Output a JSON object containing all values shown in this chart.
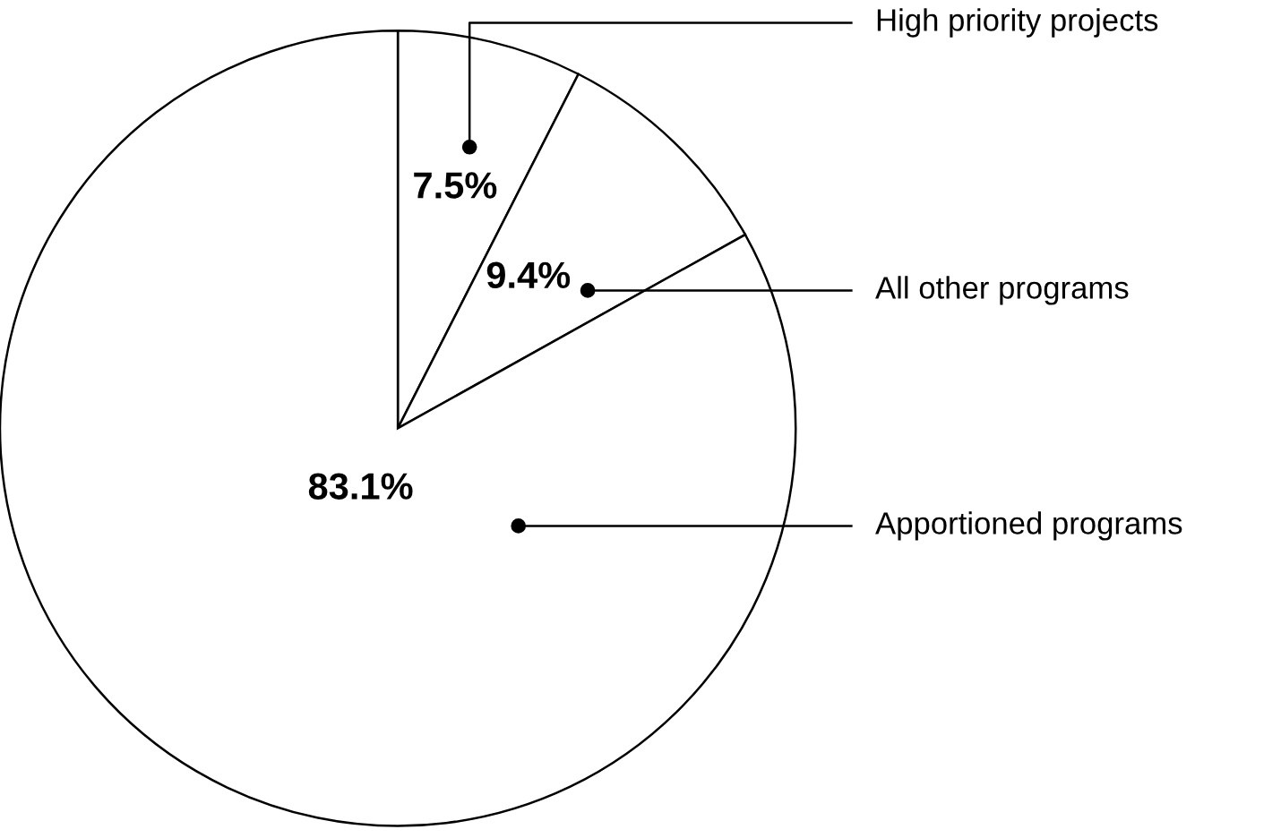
{
  "chart_data": {
    "type": "pie",
    "categories": [
      "High priority projects",
      "All other programs",
      "Apportioned programs"
    ],
    "values": [
      7.5,
      9.4,
      83.1
    ],
    "colors": [
      "#ffffff",
      "#ffffff",
      "#ffffff"
    ],
    "value_labels": [
      "7.5%",
      "9.4%",
      "83.1%"
    ]
  }
}
